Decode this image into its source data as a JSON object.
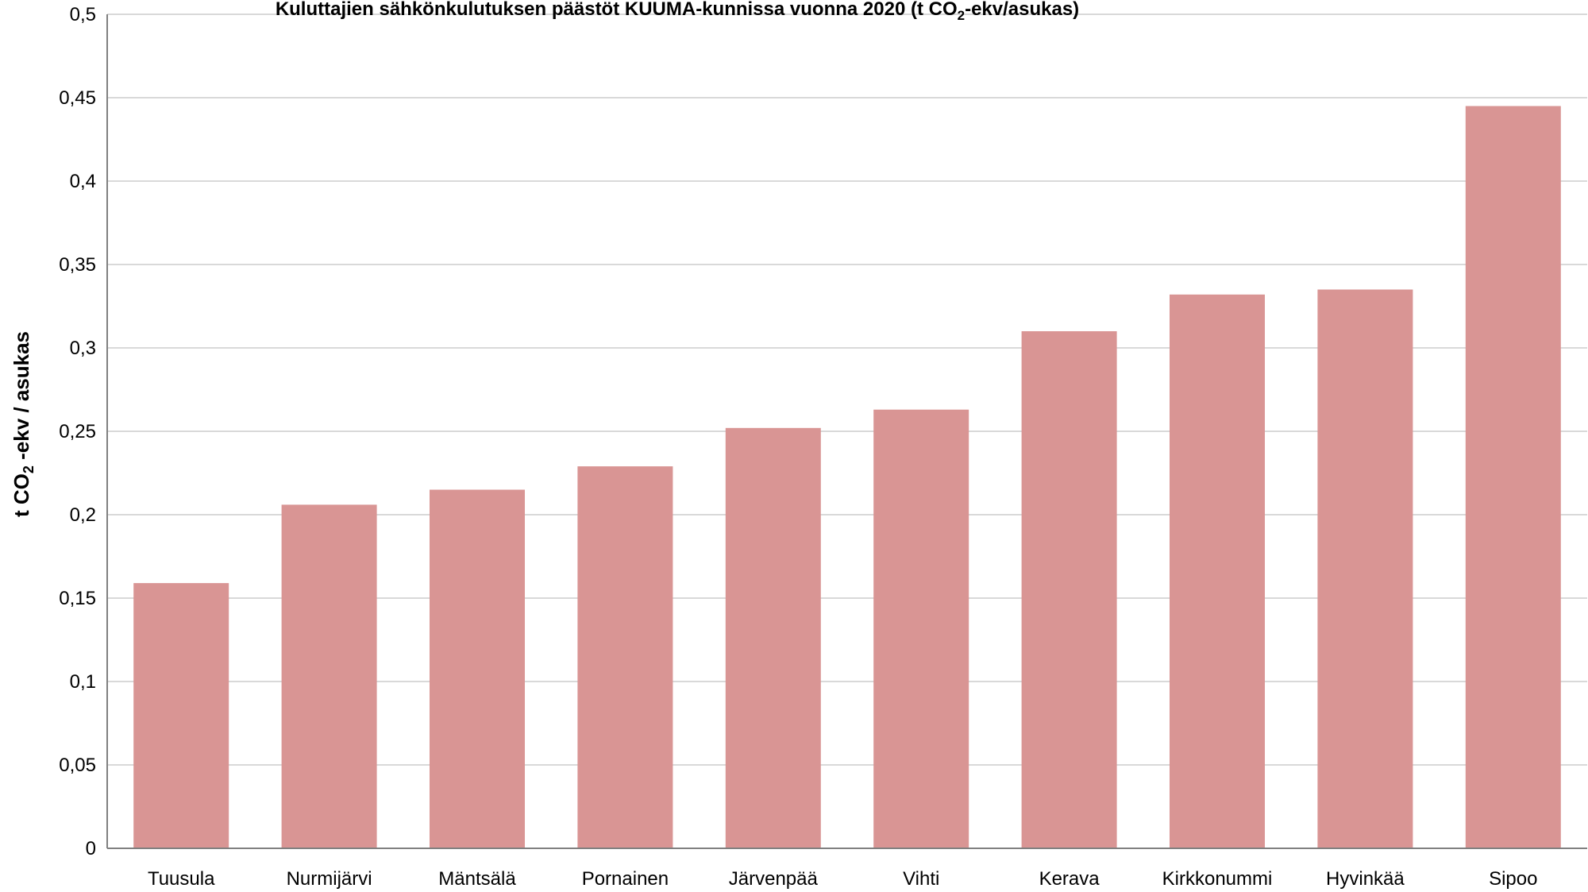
{
  "chart_data": {
    "type": "bar",
    "title": {
      "prefix": "Kuluttajien sähkönkulutuksen päästöt KUUMA-kunnissa vuonna 2020 (t CO",
      "sub": "2",
      "suffix": "-ekv/asukas)"
    },
    "ylabel": {
      "prefix": "t CO",
      "sub": "2",
      "suffix": " -ekv / asukas"
    },
    "xlabel": "",
    "categories": [
      "Tuusula",
      "Nurmijärvi",
      "Mäntsälä",
      "Pornainen",
      "Järvenpää",
      "Vihti",
      "Kerava",
      "Kirkkonummi",
      "Hyvinkää",
      "Sipoo"
    ],
    "values": [
      0.159,
      0.206,
      0.215,
      0.229,
      0.252,
      0.263,
      0.31,
      0.332,
      0.335,
      0.445
    ],
    "ylim": [
      0,
      0.5
    ],
    "yticks": [
      0,
      0.05,
      0.1,
      0.15,
      0.2,
      0.25,
      0.3,
      0.35,
      0.4,
      0.45,
      0.5
    ],
    "ytick_labels": [
      "0",
      "0,05",
      "0,1",
      "0,15",
      "0,2",
      "0,25",
      "0,3",
      "0,35",
      "0,4",
      "0,45",
      "0,5"
    ],
    "grid": true,
    "legend": "none",
    "colors": {
      "bar": "#d99594",
      "grid": "#d9d9d9",
      "axis": "#808080"
    }
  }
}
